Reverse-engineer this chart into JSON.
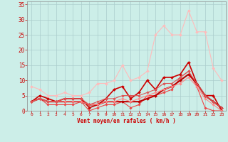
{
  "background_color": "#cceee8",
  "grid_color": "#aacccc",
  "xlabel": "Vent moyen/en rafales ( km/h )",
  "xlabel_color": "#cc0000",
  "ylabel_ticks": [
    0,
    5,
    10,
    15,
    20,
    25,
    30,
    35
  ],
  "xlim": [
    -0.5,
    23.5
  ],
  "ylim": [
    0,
    36
  ],
  "tick_color": "#cc0000",
  "series": [
    {
      "x": [
        0,
        1,
        2,
        3,
        4,
        5,
        6,
        7,
        8,
        9,
        10,
        11,
        12,
        13,
        14,
        15,
        16,
        17,
        18,
        19,
        20,
        21,
        22,
        23
      ],
      "y": [
        8,
        7,
        5,
        5,
        6,
        5,
        5,
        6,
        9,
        9,
        10,
        15,
        10,
        11,
        13,
        25,
        28,
        25,
        25,
        33,
        26,
        26,
        14,
        10
      ],
      "color": "#ffbbbb",
      "linewidth": 0.8,
      "marker": "D",
      "markersize": 2.0
    },
    {
      "x": [
        0,
        1,
        2,
        3,
        4,
        5,
        6,
        7,
        8,
        9,
        10,
        11,
        12,
        13,
        14,
        15,
        16,
        17,
        18,
        19,
        20,
        21,
        22,
        23
      ],
      "y": [
        3,
        5,
        4,
        3,
        4,
        4,
        4,
        1,
        2,
        4,
        7,
        8,
        4,
        6,
        10,
        7,
        11,
        11,
        12,
        16,
        9,
        5,
        5,
        0
      ],
      "color": "#cc0000",
      "linewidth": 1.2,
      "marker": "D",
      "markersize": 2.0
    },
    {
      "x": [
        0,
        1,
        2,
        3,
        4,
        5,
        6,
        7,
        8,
        9,
        10,
        11,
        12,
        13,
        14,
        15,
        16,
        17,
        18,
        19,
        20,
        21,
        22,
        23
      ],
      "y": [
        3,
        4,
        2,
        2,
        2,
        2,
        3,
        0,
        1,
        2,
        2,
        3,
        1,
        2,
        5,
        5,
        6,
        7,
        11,
        13,
        8,
        1,
        0,
        0
      ],
      "color": "#ee4444",
      "linewidth": 0.8,
      "marker": "D",
      "markersize": 1.8
    },
    {
      "x": [
        0,
        1,
        2,
        3,
        4,
        5,
        6,
        7,
        8,
        9,
        10,
        11,
        12,
        13,
        14,
        15,
        16,
        17,
        18,
        19,
        20,
        21,
        22,
        23
      ],
      "y": [
        3,
        4,
        3,
        3,
        3,
        3,
        3,
        2,
        2,
        3,
        3,
        3,
        3,
        3,
        4,
        5,
        7,
        8,
        10,
        12,
        9,
        5,
        3,
        1
      ],
      "color": "#bb0000",
      "linewidth": 1.5,
      "marker": "D",
      "markersize": 2.0
    },
    {
      "x": [
        0,
        1,
        2,
        3,
        4,
        5,
        6,
        7,
        8,
        9,
        10,
        11,
        12,
        13,
        14,
        15,
        16,
        17,
        18,
        19,
        20,
        21,
        22,
        23
      ],
      "y": [
        3,
        4,
        3,
        3,
        3,
        3,
        3,
        2,
        2,
        3,
        3,
        4,
        3,
        4,
        5,
        6,
        7,
        8,
        9,
        11,
        8,
        4,
        2,
        0
      ],
      "color": "#ff8888",
      "linewidth": 0.8,
      "marker": "D",
      "markersize": 1.8
    },
    {
      "x": [
        0,
        1,
        2,
        3,
        4,
        5,
        6,
        7,
        8,
        9,
        10,
        11,
        12,
        13,
        14,
        15,
        16,
        17,
        18,
        19,
        20,
        21,
        22,
        23
      ],
      "y": [
        3,
        4,
        3,
        3,
        4,
        4,
        4,
        2,
        3,
        4,
        4,
        5,
        5,
        5,
        6,
        7,
        9,
        9,
        11,
        13,
        9,
        5,
        3,
        1
      ],
      "color": "#dd5555",
      "linewidth": 0.8,
      "marker": "D",
      "markersize": 1.8
    }
  ]
}
